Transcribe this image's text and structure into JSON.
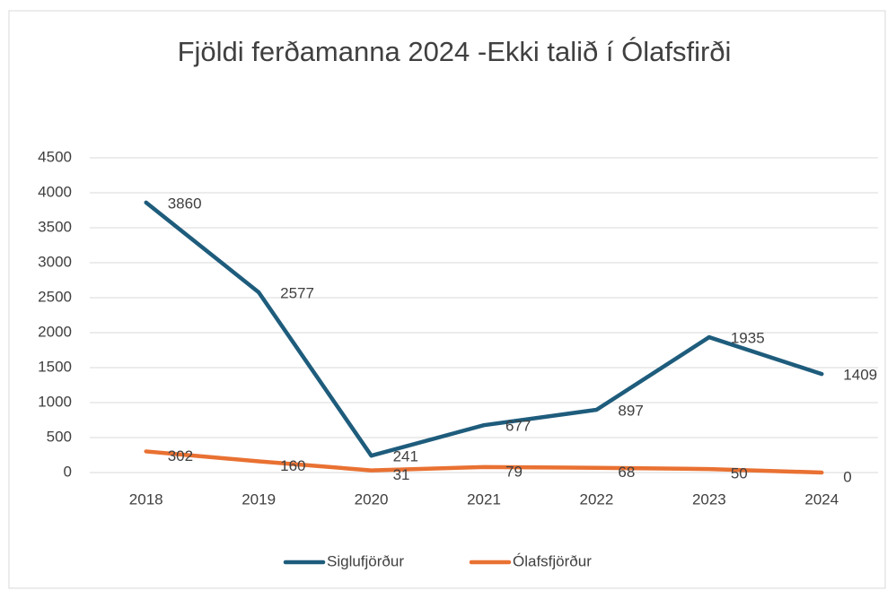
{
  "chart_data": {
    "type": "line",
    "title": "Fjöldi ferðamanna 2024 -Ekki talið í Ólafsfirði",
    "categories": [
      "2018",
      "2019",
      "2020",
      "2021",
      "2022",
      "2023",
      "2024"
    ],
    "series": [
      {
        "name": "Siglufjörður",
        "color": "#1e5c7c",
        "values": [
          3860,
          2577,
          241,
          677,
          897,
          1935,
          1409
        ]
      },
      {
        "name": "Ólafsfjörður",
        "color": "#e97132",
        "values": [
          302,
          160,
          31,
          79,
          68,
          50,
          0
        ]
      }
    ],
    "ylim": [
      0,
      4500
    ],
    "yticks": [
      0,
      500,
      1000,
      1500,
      2000,
      2500,
      3000,
      3500,
      4000,
      4500
    ],
    "grid": true,
    "legend": "bottom"
  }
}
